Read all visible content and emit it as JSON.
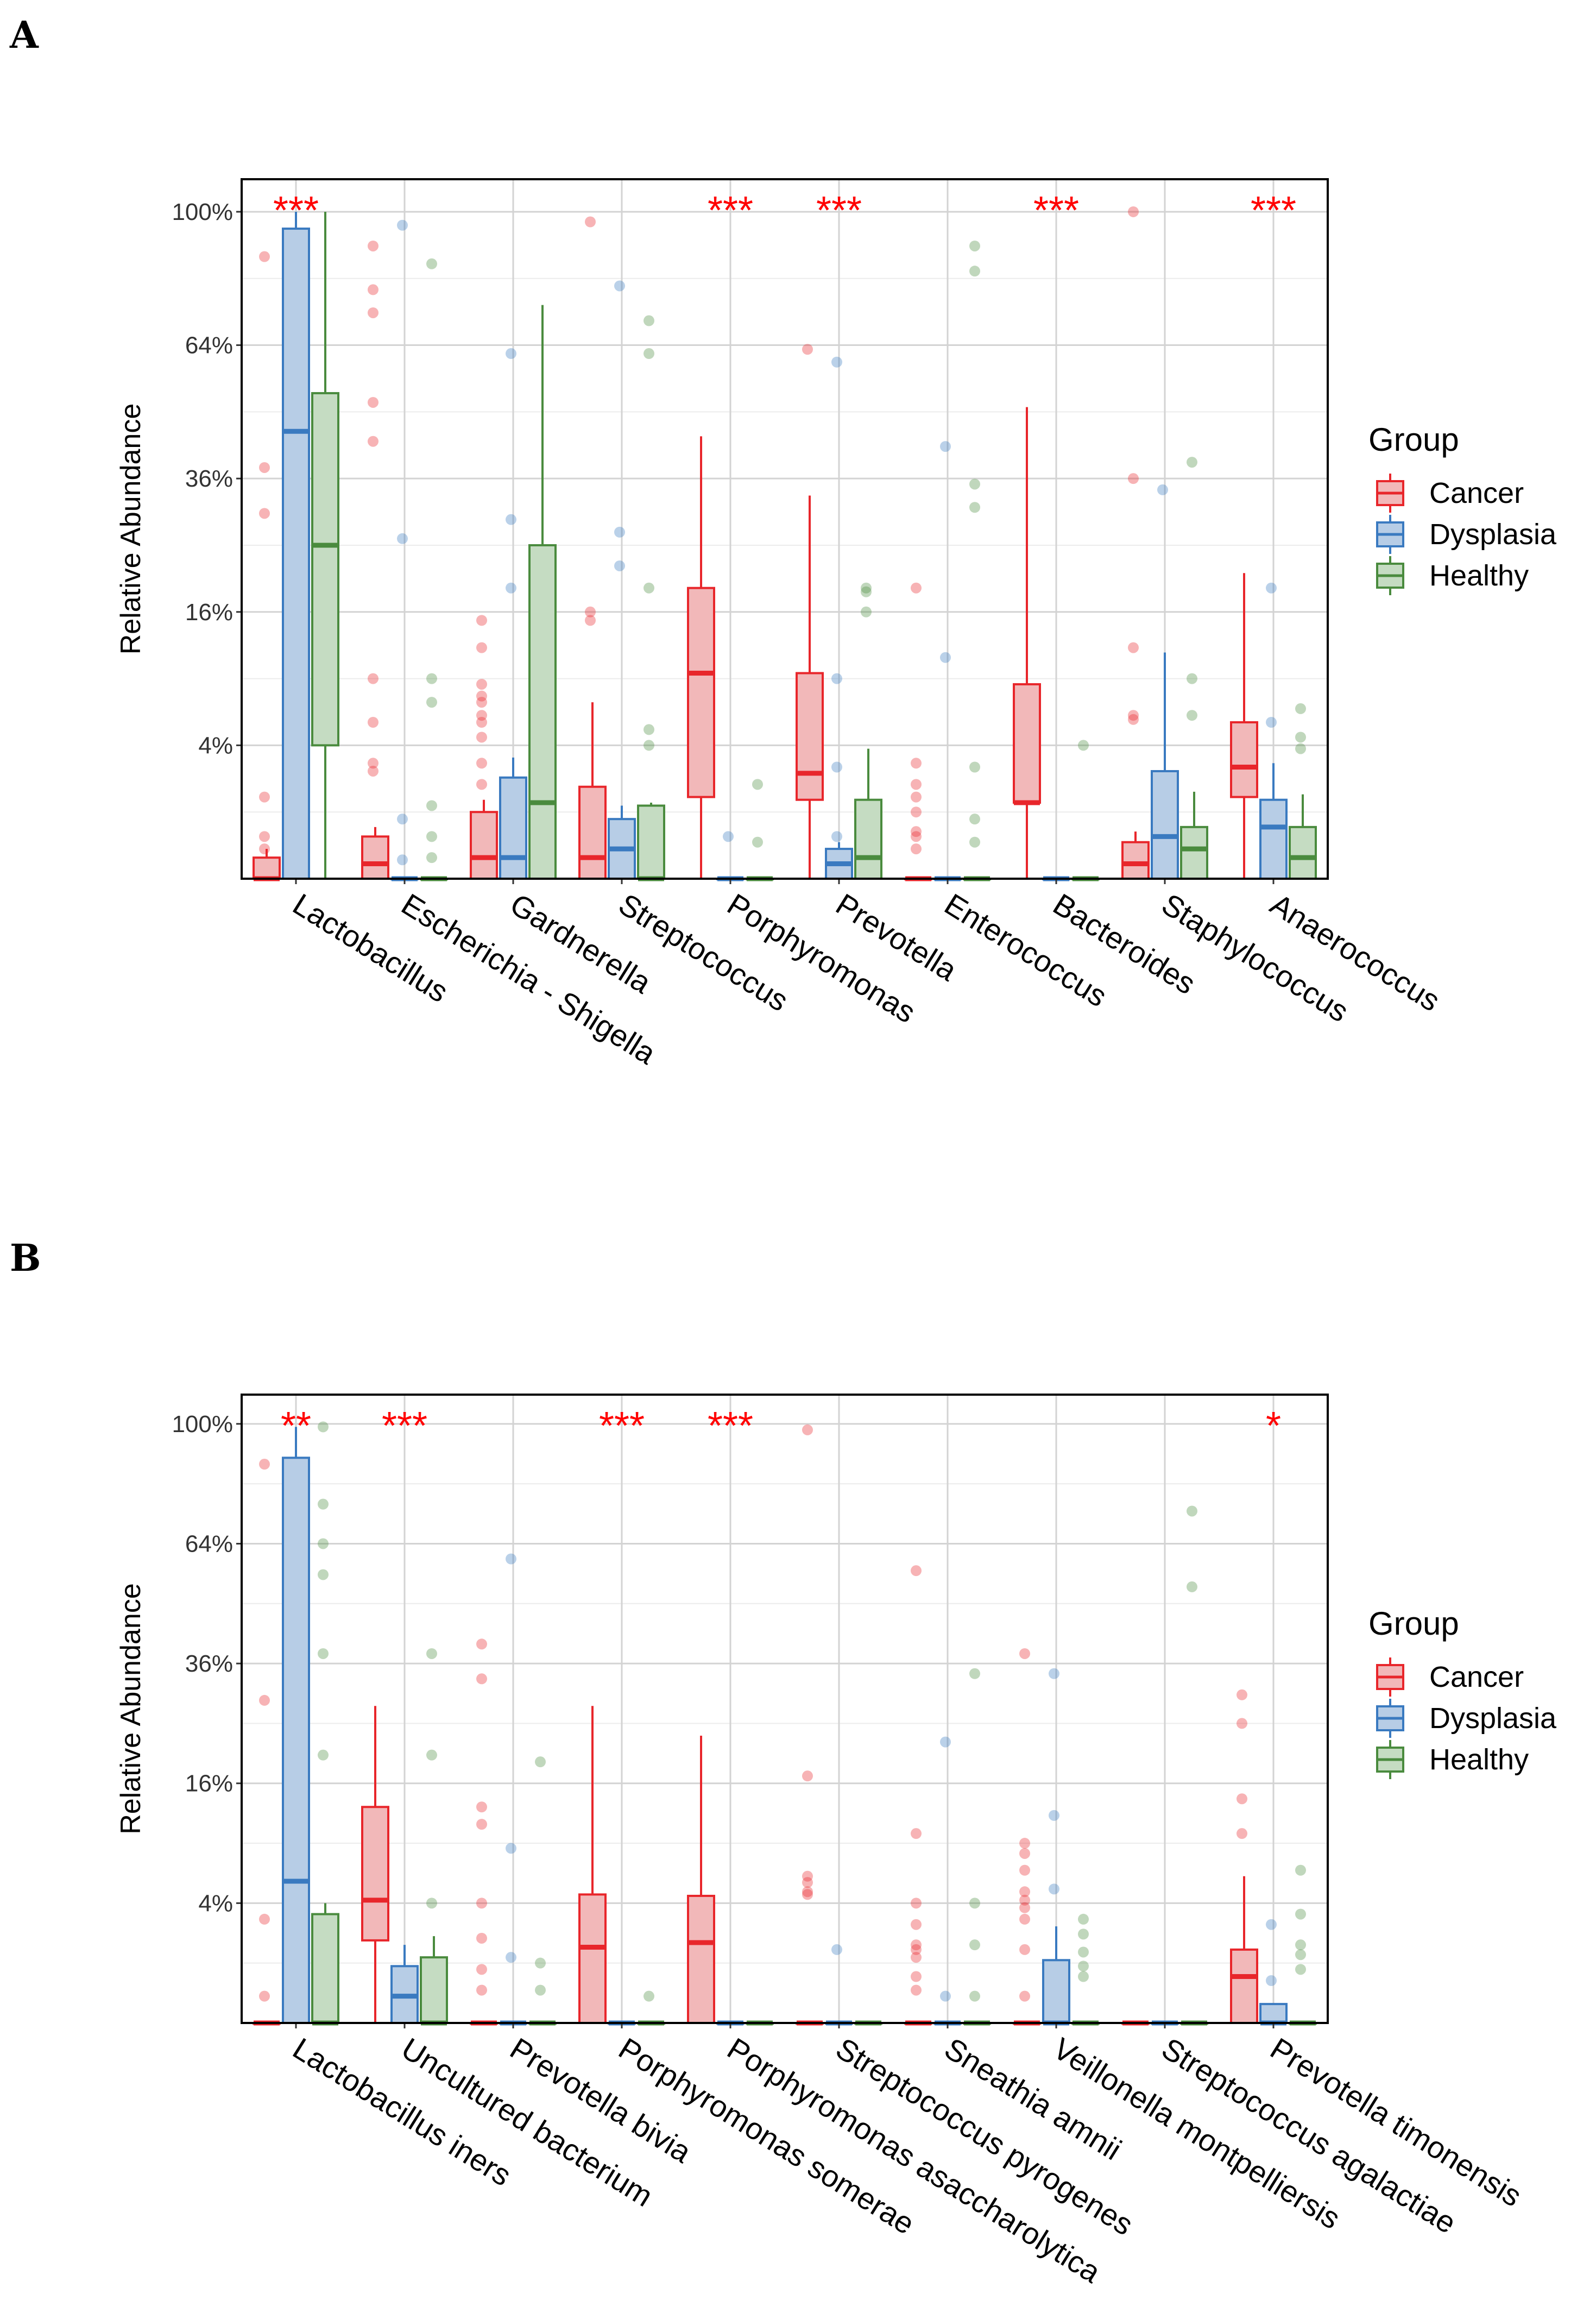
{
  "figure": {
    "panels": [
      {
        "letter": "A"
      },
      {
        "letter": "B"
      }
    ]
  },
  "legend": {
    "title": "Group",
    "groups": [
      {
        "name": "Cancer",
        "color": "#e8262b",
        "fill": "#f2b8b9"
      },
      {
        "name": "Dysplasia",
        "color": "#3a7ac0",
        "fill": "#b7cde6"
      },
      {
        "name": "Healthy",
        "color": "#4a8b3e",
        "fill": "#c5dcc2"
      }
    ]
  },
  "chart_data": [
    {
      "type": "box",
      "panel": "A",
      "title": "",
      "xlabel": "",
      "ylabel": "Relative Abundance",
      "y_scale": "sqrt",
      "ylim": [
        0,
        1.1
      ],
      "y_ticks": [
        0.04,
        0.16,
        0.36,
        0.64,
        1.0
      ],
      "y_tick_labels": [
        "4%",
        "16%",
        "36%",
        "64%",
        "100%"
      ],
      "series": [
        "Cancer",
        "Dysplasia",
        "Healthy"
      ],
      "categories": [
        "Lactobacillus",
        "Escherichia - Shigella",
        "Gardnerella",
        "Streptococcus",
        "Porphyromonas",
        "Prevotella",
        "Enterococcus",
        "Bacteroides",
        "Staphylococcus",
        "Anaerococcus"
      ],
      "significance": [
        "***",
        "",
        "",
        "",
        "***",
        "***",
        "",
        "***",
        "",
        "***"
      ],
      "boxes": [
        [
          {
            "q1": 0,
            "median": 0,
            "q3": 0.001,
            "wmin": 0,
            "wmax": 0.002,
            "outliers": [
              0.015,
              0.38,
              0.3,
              0.87,
              0.004,
              0.002
            ]
          },
          {
            "q1": 0,
            "median": 0.45,
            "q3": 0.95,
            "wmin": 0,
            "wmax": 1.0,
            "outliers": []
          },
          {
            "q1": 0.04,
            "median": 0.25,
            "q3": 0.53,
            "wmin": 0,
            "wmax": 1.0,
            "outliers": []
          }
        ],
        [
          {
            "q1": 0,
            "median": 0.0005,
            "q3": 0.004,
            "wmin": 0,
            "wmax": 0.006,
            "outliers": [
              0.9,
              0.78,
              0.72,
              0.51,
              0.43,
              0.09,
              0.055,
              0.03,
              0.026
            ]
          },
          {
            "q1": 0,
            "median": 0,
            "q3": 0,
            "wmin": 0,
            "wmax": 0,
            "outliers": [
              0.96,
              0.26,
              0.0008,
              0.008
            ]
          },
          {
            "q1": 0,
            "median": 0,
            "q3": 0,
            "wmin": 0,
            "wmax": 0,
            "outliers": [
              0.85,
              0.07,
              0.09,
              0.012,
              0.004,
              0.001
            ]
          }
        ],
        [
          {
            "q1": 0,
            "median": 0.001,
            "q3": 0.01,
            "wmin": 0,
            "wmax": 0.014,
            "outliers": [
              0.15,
              0.12,
              0.085,
              0.075,
              0.07,
              0.06,
              0.055,
              0.045,
              0.03,
              0.02
            ]
          },
          {
            "q1": 0,
            "median": 0.001,
            "q3": 0.023,
            "wmin": 0,
            "wmax": 0.033,
            "outliers": [
              0.62,
              0.29,
              0.19
            ]
          },
          {
            "q1": 0,
            "median": 0.013,
            "q3": 0.25,
            "wmin": 0,
            "wmax": 0.74,
            "outliers": []
          }
        ],
        [
          {
            "q1": 0,
            "median": 0.001,
            "q3": 0.019,
            "wmin": 0,
            "wmax": 0.07,
            "outliers": [
              0.97,
              0.16,
              0.15
            ]
          },
          {
            "q1": 0,
            "median": 0.002,
            "q3": 0.008,
            "wmin": 0,
            "wmax": 0.012,
            "outliers": [
              0.79,
              0.27,
              0.22,
              0.001
            ]
          },
          {
            "q1": 0,
            "median": 0,
            "q3": 0.012,
            "wmin": 0,
            "wmax": 0.013,
            "outliers": [
              0.7,
              0.62,
              0.19,
              0.05,
              0.04,
              0.001
            ]
          }
        ],
        [
          {
            "q1": 0.015,
            "median": 0.095,
            "q3": 0.19,
            "wmin": 0,
            "wmax": 0.44,
            "outliers": []
          },
          {
            "q1": 0,
            "median": 0,
            "q3": 0,
            "wmin": 0,
            "wmax": 0,
            "outliers": [
              0.004
            ]
          },
          {
            "q1": 0,
            "median": 0,
            "q3": 0,
            "wmin": 0,
            "wmax": 0,
            "outliers": [
              0.003,
              0.02
            ]
          }
        ],
        [
          {
            "q1": 0.014,
            "median": 0.025,
            "q3": 0.095,
            "wmin": 0,
            "wmax": 0.33,
            "outliers": [
              0.63
            ]
          },
          {
            "q1": 0,
            "median": 0.0005,
            "q3": 0.002,
            "wmin": 0,
            "wmax": 0.003,
            "outliers": [
              0.6,
              0.09,
              0.028,
              0.004,
              0.001
            ]
          },
          {
            "q1": 0,
            "median": 0.001,
            "q3": 0.014,
            "wmin": 0,
            "wmax": 0.038,
            "outliers": [
              0.19,
              0.185,
              0.16
            ]
          }
        ],
        [
          {
            "q1": 0,
            "median": 0,
            "q3": 0,
            "wmin": 0,
            "wmax": 0,
            "outliers": [
              0.19,
              0.03,
              0.02,
              0.015,
              0.01,
              0.005,
              0.004,
              0.002
            ]
          },
          {
            "q1": 0,
            "median": 0,
            "q3": 0,
            "wmin": 0,
            "wmax": 0,
            "outliers": [
              0.42,
              0.11
            ]
          },
          {
            "q1": 0,
            "median": 0,
            "q3": 0,
            "wmin": 0,
            "wmax": 0,
            "outliers": [
              0.9,
              0.83,
              0.35,
              0.31,
              0.028,
              0.008,
              0.003
            ]
          }
        ],
        [
          {
            "q1": 0.013,
            "median": 0.013,
            "q3": 0.085,
            "wmin": 0,
            "wmax": 0.5,
            "outliers": []
          },
          {
            "q1": 0,
            "median": 0,
            "q3": 0,
            "wmin": 0,
            "wmax": 0,
            "outliers": []
          },
          {
            "q1": 0,
            "median": 0,
            "q3": 0,
            "wmin": 0,
            "wmax": 0,
            "outliers": [
              0.04
            ]
          }
        ],
        [
          {
            "q1": 0,
            "median": 0.0005,
            "q3": 0.003,
            "wmin": 0,
            "wmax": 0.005,
            "outliers": [
              1.0,
              0.36,
              0.12,
              0.06,
              0.057
            ]
          },
          {
            "q1": 0,
            "median": 0.004,
            "q3": 0.026,
            "wmin": 0,
            "wmax": 0.115,
            "outliers": [
              0.34
            ]
          },
          {
            "q1": 0,
            "median": 0.002,
            "q3": 0.006,
            "wmin": 0,
            "wmax": 0.017,
            "outliers": [
              0.39,
              0.09,
              0.06,
              0.003
            ]
          }
        ],
        [
          {
            "q1": 0.015,
            "median": 0.028,
            "q3": 0.055,
            "wmin": 0,
            "wmax": 0.21,
            "outliers": []
          },
          {
            "q1": 0,
            "median": 0.006,
            "q3": 0.014,
            "wmin": 0,
            "wmax": 0.03,
            "outliers": [
              0.19,
              0.055
            ]
          },
          {
            "q1": 0,
            "median": 0.001,
            "q3": 0.006,
            "wmin": 0,
            "wmax": 0.016,
            "outliers": [
              0.065,
              0.045,
              0.038
            ]
          }
        ]
      ]
    },
    {
      "type": "box",
      "panel": "B",
      "title": "",
      "xlabel": "",
      "ylabel": "Relative Abundance",
      "y_scale": "sqrt",
      "ylim": [
        0,
        1.1
      ],
      "y_ticks": [
        0.04,
        0.16,
        0.36,
        0.64,
        1.0
      ],
      "y_tick_labels": [
        "4%",
        "16%",
        "36%",
        "64%",
        "100%"
      ],
      "series": [
        "Cancer",
        "Dysplasia",
        "Healthy"
      ],
      "categories": [
        "Lactobacillus iners",
        "Uncultured bacterium",
        "Prevotella bivia",
        "Porphyromonas somerae",
        "Porphyromonas asaccharolytica",
        "Streptococcus pyrogenes",
        "Sneathia amnii",
        "Veillonella montpelliersis",
        "Streptococcus agalactiae",
        "Prevotella timonensis"
      ],
      "significance": [
        "**",
        "***",
        "",
        "***",
        "***",
        "",
        "",
        "",
        "",
        "*"
      ],
      "boxes": [
        [
          {
            "q1": 0,
            "median": 0,
            "q3": 0,
            "wmin": 0,
            "wmax": 0,
            "outliers": [
              0.87,
              0.29,
              0.03,
              0.002
            ]
          },
          {
            "q1": 0,
            "median": 0.056,
            "q3": 0.89,
            "wmin": 0,
            "wmax": 0.99,
            "outliers": []
          },
          {
            "q1": 0,
            "median": 0,
            "q3": 0.033,
            "wmin": 0,
            "wmax": 0.04,
            "outliers": [
              0.99,
              0.75,
              0.64,
              0.56,
              0.38,
              0.2
            ]
          }
        ],
        [
          {
            "q1": 0.019,
            "median": 0.042,
            "q3": 0.13,
            "wmin": 0,
            "wmax": 0.28,
            "outliers": []
          },
          {
            "q1": 0,
            "median": 0.002,
            "q3": 0.009,
            "wmin": 0,
            "wmax": 0.017,
            "outliers": []
          },
          {
            "q1": 0,
            "median": 0,
            "q3": 0.012,
            "wmin": 0,
            "wmax": 0.021,
            "outliers": [
              0.38,
              0.2,
              0.04
            ]
          }
        ],
        [
          {
            "q1": 0,
            "median": 0,
            "q3": 0,
            "wmin": 0,
            "wmax": 0,
            "outliers": [
              0.4,
              0.33,
              0.13,
              0.11,
              0.04,
              0.02,
              0.008,
              0.003
            ]
          },
          {
            "q1": 0,
            "median": 0,
            "q3": 0,
            "wmin": 0,
            "wmax": 0,
            "outliers": [
              0.6,
              0.085,
              0.012
            ]
          },
          {
            "q1": 0,
            "median": 0,
            "q3": 0,
            "wmin": 0,
            "wmax": 0,
            "outliers": [
              0.19,
              0.01,
              0.003
            ]
          }
        ],
        [
          {
            "q1": 0,
            "median": 0.016,
            "q3": 0.046,
            "wmin": 0,
            "wmax": 0.28,
            "outliers": []
          },
          {
            "q1": 0,
            "median": 0,
            "q3": 0,
            "wmin": 0,
            "wmax": 0,
            "outliers": []
          },
          {
            "q1": 0,
            "median": 0,
            "q3": 0,
            "wmin": 0,
            "wmax": 0,
            "outliers": [
              0.002
            ]
          }
        ],
        [
          {
            "q1": 0,
            "median": 0.018,
            "q3": 0.045,
            "wmin": 0,
            "wmax": 0.23,
            "outliers": []
          },
          {
            "q1": 0,
            "median": 0,
            "q3": 0,
            "wmin": 0,
            "wmax": 0,
            "outliers": []
          },
          {
            "q1": 0,
            "median": 0,
            "q3": 0,
            "wmin": 0,
            "wmax": 0,
            "outliers": []
          }
        ],
        [
          {
            "q1": 0,
            "median": 0,
            "q3": 0,
            "wmin": 0,
            "wmax": 0,
            "outliers": [
              0.98,
              0.17,
              0.06,
              0.055,
              0.048,
              0.046
            ]
          },
          {
            "q1": 0,
            "median": 0,
            "q3": 0,
            "wmin": 0,
            "wmax": 0,
            "outliers": [
              0.015
            ]
          },
          {
            "q1": 0,
            "median": 0,
            "q3": 0,
            "wmin": 0,
            "wmax": 0,
            "outliers": []
          }
        ],
        [
          {
            "q1": 0,
            "median": 0,
            "q3": 0,
            "wmin": 0,
            "wmax": 0,
            "outliers": [
              0.57,
              0.1,
              0.04,
              0.027,
              0.017,
              0.015,
              0.012,
              0.006,
              0.003
            ]
          },
          {
            "q1": 0,
            "median": 0,
            "q3": 0,
            "wmin": 0,
            "wmax": 0,
            "outliers": [
              0.22,
              0.002
            ]
          },
          {
            "q1": 0,
            "median": 0,
            "q3": 0,
            "wmin": 0,
            "wmax": 0,
            "outliers": [
              0.34,
              0.04,
              0.017,
              0.002
            ]
          }
        ],
        [
          {
            "q1": 0,
            "median": 0,
            "q3": 0,
            "wmin": 0,
            "wmax": 0,
            "outliers": [
              0.38,
              0.09,
              0.08,
              0.065,
              0.048,
              0.042,
              0.037,
              0.03,
              0.015,
              0.002
            ]
          },
          {
            "q1": 0,
            "median": 0,
            "q3": 0.011,
            "wmin": 0,
            "wmax": 0.026,
            "outliers": [
              0.34,
              0.12,
              0.05
            ]
          },
          {
            "q1": 0,
            "median": 0,
            "q3": 0,
            "wmin": 0,
            "wmax": 0,
            "outliers": [
              0.03,
              0.022,
              0.014,
              0.009,
              0.006
            ]
          }
        ],
        [
          {
            "q1": 0,
            "median": 0,
            "q3": 0,
            "wmin": 0,
            "wmax": 0,
            "outliers": []
          },
          {
            "q1": 0,
            "median": 0,
            "q3": 0,
            "wmin": 0,
            "wmax": 0,
            "outliers": []
          },
          {
            "q1": 0,
            "median": 0,
            "q3": 0,
            "wmin": 0,
            "wmax": 0,
            "outliers": [
              0.73,
              0.53
            ]
          }
        ],
        [
          {
            "q1": 0,
            "median": 0.006,
            "q3": 0.015,
            "wmin": 0,
            "wmax": 0.06,
            "outliers": [
              0.3,
              0.25,
              0.14,
              0.1
            ]
          },
          {
            "q1": 0,
            "median": 0,
            "q3": 0.001,
            "wmin": 0,
            "wmax": 0.001,
            "outliers": [
              0.027,
              0.005
            ]
          },
          {
            "q1": 0,
            "median": 0,
            "q3": 0,
            "wmin": 0,
            "wmax": 0,
            "outliers": [
              0.065,
              0.033,
              0.017,
              0.013,
              0.008
            ]
          }
        ]
      ]
    }
  ]
}
